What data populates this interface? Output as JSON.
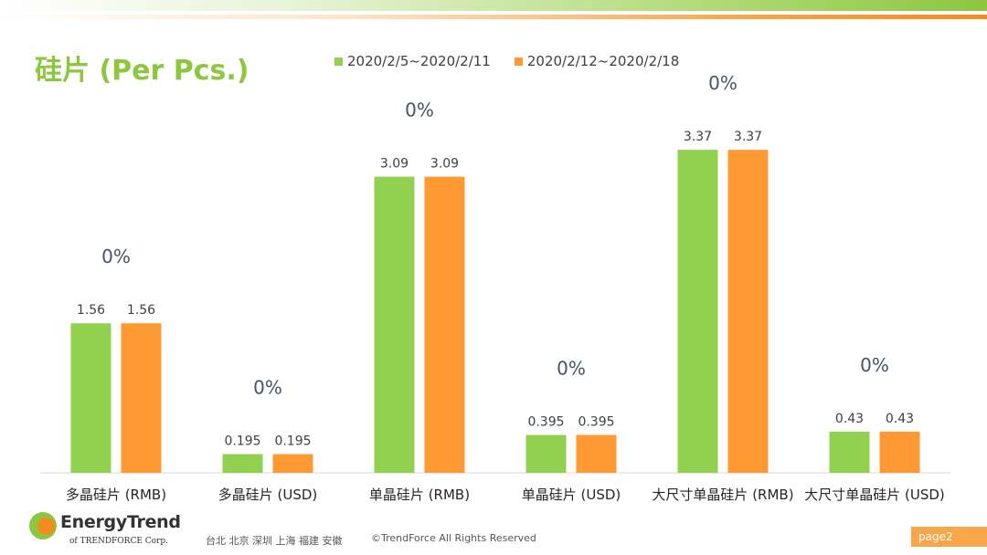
{
  "header": {
    "title": "硅片 (Per Pcs.)"
  },
  "colors": {
    "series1": "#92d050",
    "series2": "#ff9933",
    "title": "#8dc63f",
    "axis": "#d9d9d9"
  },
  "chart_data": {
    "type": "bar",
    "title": "硅片 (Per Pcs.)",
    "categories": [
      "多晶硅片 (RMB)",
      "多晶硅片 (USD)",
      "单晶硅片 (RMB)",
      "单晶硅片 (USD)",
      "大尺寸单晶硅片 (RMB)",
      "大尺寸单晶硅片 (USD)"
    ],
    "series": [
      {
        "name": "2020/2/5~2020/2/11",
        "values": [
          1.56,
          0.195,
          3.09,
          0.395,
          3.37,
          0.43
        ],
        "labels": [
          "1.56",
          "0.195",
          "3.09",
          "0.395",
          "3.37",
          "0.43"
        ]
      },
      {
        "name": "2020/2/12~2020/2/18",
        "values": [
          1.56,
          0.195,
          3.09,
          0.395,
          3.37,
          0.43
        ],
        "labels": [
          "1.56",
          "0.195",
          "3.09",
          "0.395",
          "3.37",
          "0.43"
        ]
      }
    ],
    "change_labels": [
      "0%",
      "0%",
      "0%",
      "0%",
      "0%",
      "0%"
    ],
    "legend_position": "top",
    "grid": false
  },
  "footer": {
    "logo_text": "EnergyTrend",
    "logo_sub": "of TRENDFORCE Corp.",
    "cities": "台北  北京  深圳  上海  福建  安徽",
    "copyright": "©TrendForce All Rights Reserved",
    "page": "page2"
  }
}
